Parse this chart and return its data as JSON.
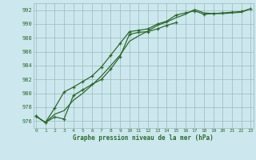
{
  "title": "Graphe pression niveau de la mer (hPa)",
  "bg_color": "#cce8ee",
  "grid_color": "#99bbbb",
  "line_color": "#2d6a2d",
  "xlim_min": -0.3,
  "xlim_max": 23.3,
  "ylim_min": 975.0,
  "ylim_max": 993.0,
  "yticks": [
    976,
    978,
    980,
    982,
    984,
    986,
    988,
    990,
    992
  ],
  "xticks": [
    0,
    1,
    2,
    3,
    4,
    5,
    6,
    7,
    8,
    9,
    10,
    11,
    12,
    13,
    14,
    15,
    16,
    17,
    18,
    19,
    20,
    21,
    22,
    23
  ],
  "series1_x": [
    0,
    1,
    2,
    3,
    4,
    5,
    6,
    7,
    8,
    9,
    10,
    11,
    12,
    13,
    14,
    15
  ],
  "series1_y": [
    976.7,
    975.8,
    976.6,
    976.3,
    979.7,
    980.5,
    981.3,
    982.0,
    983.5,
    985.3,
    988.5,
    988.8,
    988.9,
    989.3,
    989.8,
    990.2
  ],
  "series2_x": [
    0,
    1,
    2,
    3,
    4,
    5,
    6,
    7,
    8,
    9,
    10,
    11,
    12,
    13,
    14,
    15,
    16,
    17,
    18,
    19,
    20,
    21,
    22,
    23
  ],
  "series2_y": [
    976.7,
    975.8,
    977.9,
    980.2,
    980.9,
    981.7,
    982.5,
    983.8,
    985.5,
    987.2,
    988.9,
    989.1,
    989.3,
    990.0,
    990.4,
    991.3,
    991.6,
    991.9,
    991.4,
    991.5,
    991.6,
    991.7,
    991.8,
    992.2
  ],
  "series3_x": [
    0,
    1,
    2,
    3,
    4,
    5,
    6,
    7,
    8,
    9,
    10,
    11,
    12,
    13,
    14,
    15,
    16,
    17,
    18,
    19,
    20,
    21,
    22,
    23
  ],
  "series3_y": [
    976.7,
    975.8,
    977.0,
    977.5,
    979.0,
    980.0,
    981.2,
    982.5,
    984.0,
    985.5,
    987.5,
    988.3,
    989.0,
    989.8,
    990.3,
    990.9,
    991.4,
    992.1,
    991.6,
    991.5,
    991.5,
    991.6,
    991.7,
    992.2
  ]
}
